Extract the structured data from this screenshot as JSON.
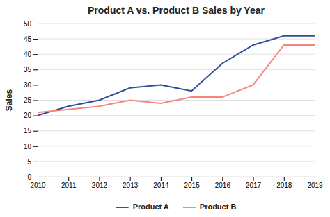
{
  "chart_data": {
    "type": "line",
    "title": "Product A vs. Product B Sales by Year",
    "ylabel": "Sales",
    "x": [
      2010,
      2011,
      2012,
      2013,
      2014,
      2015,
      2016,
      2017,
      2018,
      2019
    ],
    "series": [
      {
        "name": "Product A",
        "color": "#2e4d9b",
        "values": [
          20,
          23,
          25,
          29,
          30,
          28,
          37,
          43,
          46,
          46
        ]
      },
      {
        "name": "Product B",
        "color": "#f4877a",
        "values": [
          21,
          22,
          23,
          25,
          24,
          26,
          26,
          30,
          43,
          43
        ]
      }
    ],
    "xlim": [
      2010,
      2019
    ],
    "xticks": [
      2010,
      2011,
      2012,
      2013,
      2014,
      2015,
      2016,
      2017,
      2018,
      2019
    ],
    "ylim": [
      0,
      50
    ],
    "yticks": [
      0,
      5,
      10,
      15,
      20,
      25,
      30,
      35,
      40,
      45,
      50
    ],
    "grid": true,
    "legend": "bottom"
  }
}
